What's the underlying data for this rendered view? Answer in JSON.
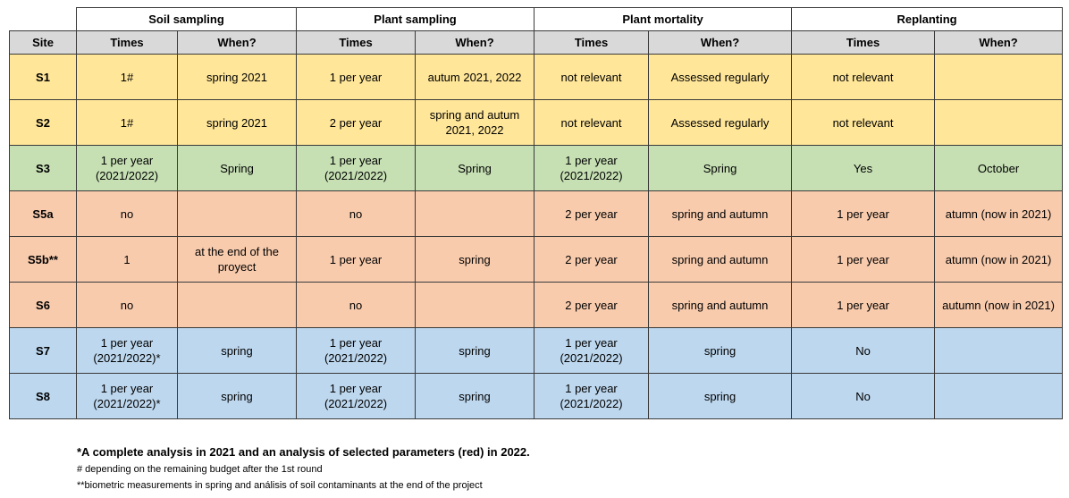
{
  "colors": {
    "yellow": "#ffe699",
    "green": "#c6e0b4",
    "orange": "#f8cbad",
    "blue": "#bdd7ee",
    "header_gray": "#d9d9d9"
  },
  "groups": [
    "Soil  sampling",
    "Plant  sampling",
    "Plant mortality",
    "Replanting"
  ],
  "headers": [
    "Site",
    "Times",
    "When?",
    "Times",
    "When?",
    "Times",
    "When?",
    "Times",
    "When?"
  ],
  "rows": [
    {
      "color": "yellow",
      "cells": [
        "S1",
        "1#",
        "spring 2021",
        "1 per year",
        "autum 2021, 2022",
        "not relevant",
        "Assessed regularly",
        "not relevant",
        ""
      ]
    },
    {
      "color": "yellow",
      "cells": [
        "S2",
        "1#",
        "spring 2021",
        "2 per year",
        "spring and autum\n2021, 2022",
        "not relevant",
        "Assessed regularly",
        "not relevant",
        ""
      ]
    },
    {
      "color": "green",
      "cells": [
        "S3",
        "1 per year\n(2021/2022)",
        "Spring",
        "1 per year\n(2021/2022)",
        "Spring",
        "1 per year\n(2021/2022)",
        "Spring",
        "Yes",
        "October"
      ]
    },
    {
      "color": "orange",
      "cells": [
        "S5a",
        "no",
        "",
        "no",
        "",
        "2 per year",
        "spring and autumn",
        "1 per year",
        "atumn (now in 2021)"
      ]
    },
    {
      "color": "orange",
      "cells": [
        "S5b**",
        "1",
        "at the end of the\nproyect",
        "1 per year",
        "spring",
        "2 per year",
        "spring and autumn",
        "1 per year",
        "atumn (now in 2021)"
      ]
    },
    {
      "color": "orange",
      "cells": [
        "S6",
        "no",
        "",
        "no",
        "",
        "2 per year",
        "spring and autumn",
        "1 per year",
        "autumn (now in 2021)"
      ]
    },
    {
      "color": "blue",
      "cells": [
        "S7",
        "1 per year\n(2021/2022)*",
        "spring",
        "1 per year\n(2021/2022)",
        "spring",
        "1 per year\n(2021/2022)",
        "spring",
        "No",
        ""
      ]
    },
    {
      "color": "blue",
      "cells": [
        "S8",
        "1 per year\n(2021/2022)*",
        "spring",
        "1 per year\n(2021/2022)",
        "spring",
        "1 per year\n(2021/2022)",
        "spring",
        "No",
        ""
      ]
    }
  ],
  "notes": {
    "n1": "*A complete analysis in 2021 and an analysis of selected parameters (red) in 2022.",
    "n2": "# depending on the remaining budget after the 1st round",
    "n3": "**biometric measurements in spring and análisis of soil contaminants at the end of the project"
  }
}
